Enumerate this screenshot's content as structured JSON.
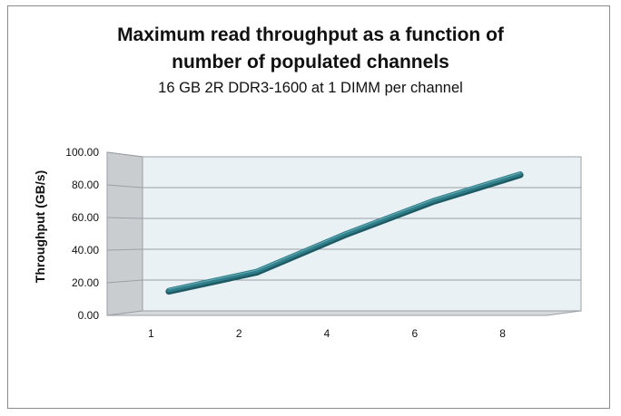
{
  "chart_data": {
    "type": "line",
    "title": "Maximum read throughput as a function of",
    "title_line2": "number of populated channels",
    "subtitle": "16 GB 2R DDR3-1600 at 1 DIMM per channel",
    "xlabel": "",
    "ylabel": "Throughput (GB/s)",
    "categories": [
      "1",
      "2",
      "4",
      "6",
      "8"
    ],
    "values": [
      14.5,
      26.5,
      50.0,
      71.0,
      88.0
    ],
    "ylim": [
      0,
      100
    ],
    "y_ticks": [
      "0.00",
      "20.00",
      "40.00",
      "60.00",
      "80.00",
      "100.00"
    ],
    "grid": true,
    "legend": "none",
    "colors": {
      "line": "#2f7d88",
      "wall": "#eaf1f5",
      "floor": "#d6d9dc",
      "side": "#c9cdd0",
      "grid": "#9aa0a6"
    }
  }
}
